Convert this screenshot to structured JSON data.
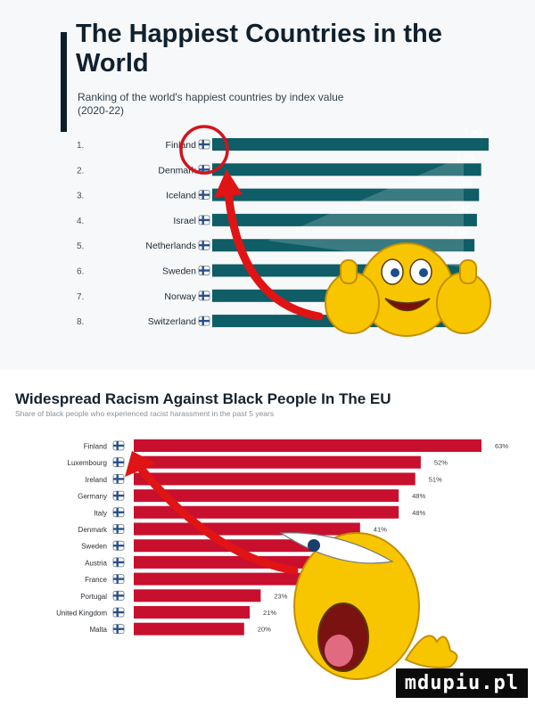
{
  "watermark": "mdupiu.pl",
  "colors": {
    "teal_bar": "#0f5d66",
    "red_bar": "#c8102e",
    "arrow_red": "#e01414",
    "circle_red": "#d3141c",
    "emoji_yellow": "#f7c600"
  },
  "icons": [
    "circle-highlight-icon",
    "red-arrow-icon",
    "thumbs-up-emoji-icon",
    "laughing-emoji-icon",
    "flag-icon"
  ],
  "chart_data": [
    {
      "type": "bar",
      "orientation": "horizontal",
      "title": "The Happiest Countries in the World",
      "subtitle": "Ranking of the world's happiest countries by index value (2020-22)",
      "ranks": [
        "1.",
        "2.",
        "3.",
        "4.",
        "5.",
        "6.",
        "7.",
        "8."
      ],
      "categories": [
        "Finland",
        "Denmark",
        "Iceland",
        "Israel",
        "Netherlands",
        "Sweden",
        "Norway",
        "Switzerland"
      ],
      "values": [
        7.8,
        7.59,
        7.53,
        7.47,
        7.4,
        null,
        null,
        null
      ],
      "value_labels": [
        "7.80",
        "7.59",
        "7.53",
        "7.47",
        "7.40",
        "",
        "",
        ""
      ],
      "bar_color": "#0f5d66",
      "xlim": [
        0,
        7.8
      ]
    },
    {
      "type": "bar",
      "orientation": "horizontal",
      "title": "Widespread Racism Against Black People In The EU",
      "subtitle": "Share of black people who experienced racist harassment in the past 5 years",
      "categories": [
        "Finland",
        "Luxembourg",
        "Ireland",
        "Germany",
        "Italy",
        "Denmark",
        "Sweden",
        "Austria",
        "France",
        "Portugal",
        "United Kingdom",
        "Malta"
      ],
      "values": [
        63,
        52,
        51,
        48,
        48,
        41,
        39,
        37,
        32,
        23,
        21,
        20
      ],
      "value_labels": [
        "63%",
        "52%",
        "51%",
        "48%",
        "48%",
        "41%",
        "",
        "",
        "",
        "23%",
        "21%",
        "20%"
      ],
      "bar_color": "#c8102e",
      "xlim": [
        0,
        63
      ],
      "unit": "%"
    }
  ]
}
